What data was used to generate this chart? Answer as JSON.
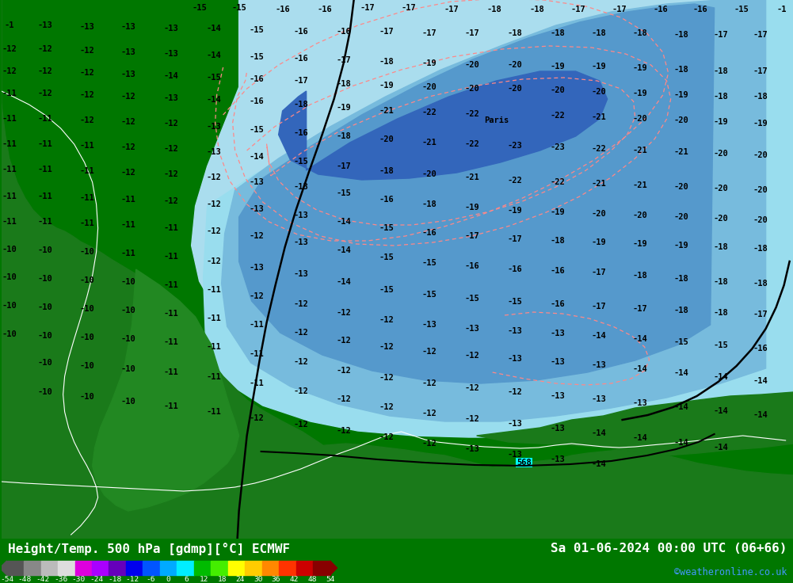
{
  "title_left": "Height/Temp. 500 hPa [gdmp][°C] ECMWF",
  "title_right": "Sa 01-06-2024 00:00 UTC (06+66)",
  "credit": "©weatheronline.co.uk",
  "colorbar_ticks": [
    -54,
    -48,
    -42,
    -36,
    -30,
    -24,
    -18,
    -12,
    -6,
    0,
    6,
    12,
    18,
    24,
    30,
    36,
    42,
    48,
    54
  ],
  "colorbar_colors_segments": [
    "#555555",
    "#888888",
    "#bbbbbb",
    "#dddddd",
    "#dd00dd",
    "#aa00ff",
    "#6600bb",
    "#0000ee",
    "#0055ff",
    "#00aaff",
    "#00eeff",
    "#00bb00",
    "#44ee00",
    "#ffff00",
    "#ffcc00",
    "#ff8800",
    "#ff3300",
    "#cc0000",
    "#880000"
  ],
  "footer_bg": "#007700",
  "credit_color": "#4499ff",
  "map_bg": "#00eeff",
  "land_dark": "#1a7a1a",
  "land_medium": "#228822",
  "land_light": "#33aa33",
  "sea_cyan": "#00ffff",
  "blue_outer": "#88ccee",
  "blue_mid": "#55aadd",
  "blue_core": "#3377cc",
  "blue_darkcore": "#2255aa"
}
